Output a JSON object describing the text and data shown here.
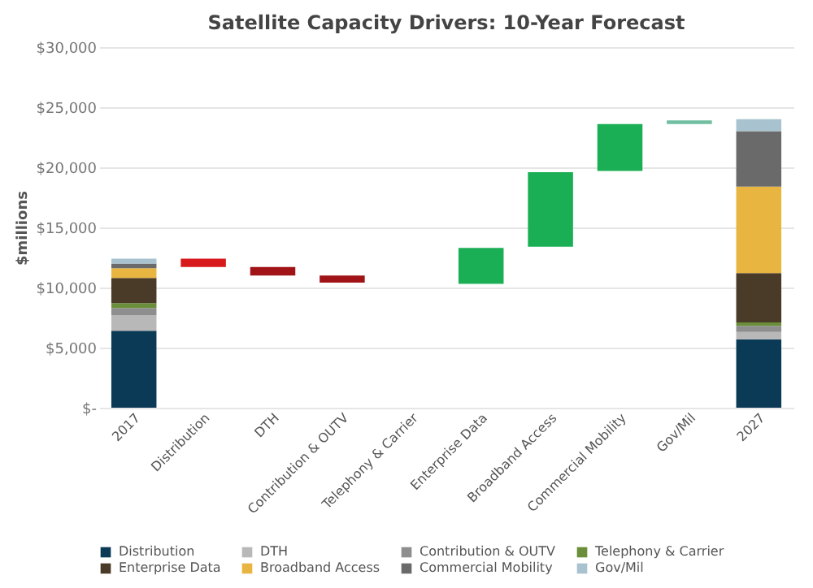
{
  "chart_data": {
    "type": "bar",
    "stacked": true,
    "title": "Satellite Capacity Drivers: 10-Year Forecast",
    "ylabel": "$millions",
    "categories": [
      "2017",
      "Distribution",
      "DTH",
      "Contribution & OUTV",
      "Telephony & Carrier",
      "Enterprise Data",
      "Broadband Access",
      "Commercial Mobility",
      "Gov/Mil",
      "2027"
    ],
    "series": [
      {
        "name": "Distribution",
        "color": "#0b3a57",
        "values": [
          6400,
          null,
          null,
          null,
          null,
          null,
          null,
          null,
          null,
          5700
        ]
      },
      {
        "name": "DTH",
        "color": "#b8b8b8",
        "values": [
          1300,
          null,
          null,
          null,
          null,
          null,
          null,
          null,
          null,
          600
        ]
      },
      {
        "name": "Contribution & OUTV",
        "color": "#8e8e8e",
        "values": [
          600,
          null,
          null,
          null,
          null,
          null,
          null,
          null,
          null,
          500
        ]
      },
      {
        "name": "Telephony & Carrier",
        "color": "#6b8e3a",
        "values": [
          400,
          null,
          null,
          null,
          null,
          null,
          null,
          null,
          null,
          300
        ]
      },
      {
        "name": "Enterprise Data",
        "color": "#4a3a28",
        "values": [
          2100,
          null,
          null,
          null,
          null,
          null,
          null,
          null,
          null,
          4100
        ]
      },
      {
        "name": "Broadband Access",
        "color": "#e8b541",
        "values": [
          800,
          null,
          null,
          null,
          null,
          null,
          null,
          null,
          null,
          7200
        ]
      },
      {
        "name": "Commercial Mobility",
        "color": "#6a6a6a",
        "values": [
          400,
          null,
          null,
          null,
          null,
          null,
          null,
          null,
          null,
          4600
        ]
      },
      {
        "name": "Gov/Mil",
        "color": "#a8c3cf",
        "values": [
          400,
          null,
          null,
          null,
          null,
          null,
          null,
          null,
          null,
          1000
        ]
      },
      {
        "values": [
          null,
          -700,
          -700,
          -600,
          null,
          3000,
          6200,
          3900,
          300,
          null
        ],
        "base": [
          null,
          12400,
          11700,
          11000,
          null,
          10300,
          13400,
          19700,
          23600,
          null
        ],
        "colors": [
          null,
          "#d7191c",
          "#a01418",
          "#a01418",
          null,
          "#1aaf54",
          "#1aaf54",
          "#1aaf54",
          "#6fbfa0",
          null
        ]
      }
    ],
    "ylim": [
      0,
      30000
    ],
    "yticks": [
      {
        "value": 0,
        "label": "$-"
      },
      {
        "value": 5000,
        "label": "$5,000"
      },
      {
        "value": 10000,
        "label": "$10,000"
      },
      {
        "value": 15000,
        "label": "$15,000"
      },
      {
        "value": 20000,
        "label": "$20,000"
      },
      {
        "value": 25000,
        "label": "$25,000"
      },
      {
        "value": 30000,
        "label": "$30,000"
      }
    ],
    "grid": "y",
    "legend": "bottom"
  }
}
